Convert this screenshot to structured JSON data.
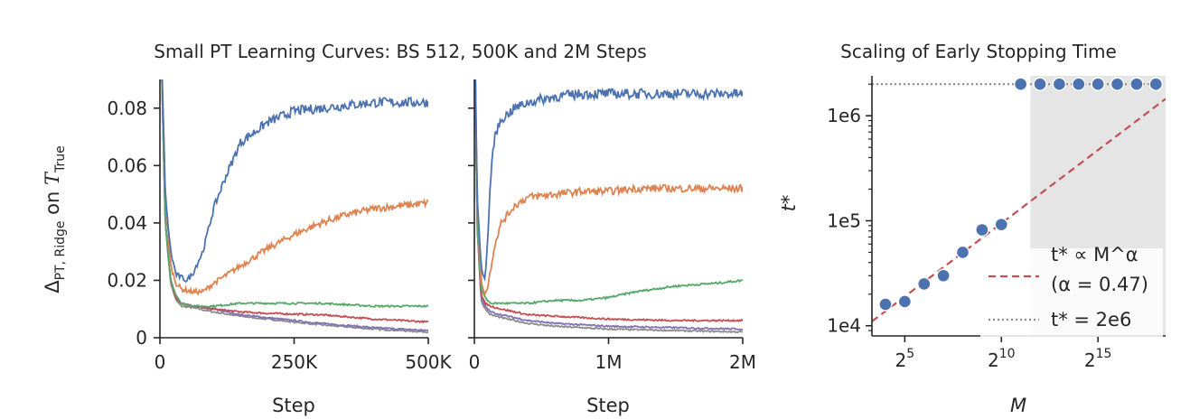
{
  "suptitle": "Small PT Learning Curves: BS 512, 500K and 2M Steps",
  "ylabel_left": "Δ_PT, Ridge on T_True",
  "ylabel_parts": {
    "delta": "Δ",
    "sub": "PT, Ridge",
    "on": " on ",
    "T": "T",
    "tsub": "True"
  },
  "colors": {
    "blue": "#4c72b0",
    "orange": "#dd8452",
    "green": "#55a868",
    "red": "#c44e52",
    "purple": "#8172b3",
    "gray": "#8c8c8c",
    "shade": "#e5e5e5"
  },
  "chart_data": [
    {
      "type": "line",
      "title": "",
      "xlabel": "Step",
      "ylabel": "Δ_PT, Ridge on T_True",
      "xlim": [
        0,
        500000
      ],
      "ylim": [
        0,
        0.09
      ],
      "xticks": [
        0,
        250000,
        500000
      ],
      "xtick_labels": [
        "0",
        "250K",
        "500K"
      ],
      "yticks": [
        0,
        0.02,
        0.04,
        0.06,
        0.08
      ],
      "ytick_labels": [
        "0",
        "0.02",
        "0.04",
        "0.06",
        "0.08"
      ],
      "series": [
        {
          "color": "blue",
          "x": [
            0,
            10000,
            20000,
            30000,
            40000,
            50000,
            60000,
            80000,
            100000,
            120000,
            150000,
            200000,
            250000,
            300000,
            350000,
            400000,
            450000,
            500000
          ],
          "values": [
            0.12,
            0.05,
            0.03,
            0.022,
            0.021,
            0.02,
            0.022,
            0.03,
            0.045,
            0.055,
            0.068,
            0.075,
            0.079,
            0.08,
            0.081,
            0.082,
            0.082,
            0.082
          ]
        },
        {
          "color": "orange",
          "x": [
            0,
            10000,
            20000,
            30000,
            40000,
            60000,
            80000,
            100000,
            150000,
            200000,
            250000,
            300000,
            350000,
            400000,
            450000,
            500000
          ],
          "values": [
            0.12,
            0.05,
            0.025,
            0.019,
            0.017,
            0.016,
            0.016,
            0.019,
            0.025,
            0.031,
            0.036,
            0.04,
            0.043,
            0.045,
            0.046,
            0.047
          ]
        },
        {
          "color": "green",
          "x": [
            0,
            10000,
            20000,
            30000,
            40000,
            60000,
            100000,
            150000,
            200000,
            300000,
            400000,
            500000
          ],
          "values": [
            0.12,
            0.04,
            0.02,
            0.015,
            0.012,
            0.011,
            0.011,
            0.012,
            0.012,
            0.012,
            0.011,
            0.011
          ]
        },
        {
          "color": "red",
          "x": [
            0,
            10000,
            20000,
            30000,
            40000,
            60000,
            100000,
            150000,
            200000,
            300000,
            400000,
            500000
          ],
          "values": [
            0.12,
            0.04,
            0.02,
            0.014,
            0.012,
            0.011,
            0.01,
            0.009,
            0.0085,
            0.008,
            0.0065,
            0.0055
          ]
        },
        {
          "color": "purple",
          "x": [
            0,
            10000,
            20000,
            30000,
            40000,
            60000,
            100000,
            150000,
            200000,
            300000,
            400000,
            500000
          ],
          "values": [
            0.12,
            0.04,
            0.02,
            0.014,
            0.012,
            0.011,
            0.01,
            0.008,
            0.007,
            0.005,
            0.0035,
            0.0025
          ]
        },
        {
          "color": "gray",
          "x": [
            0,
            10000,
            20000,
            30000,
            40000,
            60000,
            100000,
            150000,
            200000,
            300000,
            400000,
            500000
          ],
          "values": [
            0.12,
            0.04,
            0.019,
            0.013,
            0.011,
            0.0105,
            0.009,
            0.0075,
            0.0065,
            0.0045,
            0.003,
            0.002
          ]
        }
      ]
    },
    {
      "type": "line",
      "title": "",
      "xlabel": "Step",
      "ylabel": "",
      "xlim": [
        0,
        2000000
      ],
      "ylim": [
        0,
        0.09
      ],
      "xticks": [
        0,
        1000000,
        2000000
      ],
      "xtick_labels": [
        "0",
        "1M",
        "2M"
      ],
      "yticks": [
        0,
        0.02,
        0.04,
        0.06,
        0.08
      ],
      "series": [
        {
          "color": "blue",
          "x": [
            0,
            20000,
            50000,
            80000,
            100000,
            120000,
            150000,
            200000,
            300000,
            400000,
            600000,
            800000,
            1000000,
            1200000,
            1500000,
            1800000,
            2000000
          ],
          "values": [
            0.12,
            0.05,
            0.025,
            0.02,
            0.035,
            0.055,
            0.07,
            0.076,
            0.08,
            0.082,
            0.084,
            0.085,
            0.085,
            0.085,
            0.085,
            0.085,
            0.085
          ]
        },
        {
          "color": "orange",
          "x": [
            0,
            20000,
            50000,
            80000,
            100000,
            150000,
            200000,
            300000,
            400000,
            600000,
            800000,
            1000000,
            1200000,
            1500000,
            1800000,
            2000000
          ],
          "values": [
            0.12,
            0.05,
            0.02,
            0.015,
            0.018,
            0.032,
            0.04,
            0.046,
            0.049,
            0.05,
            0.051,
            0.051,
            0.052,
            0.052,
            0.052,
            0.052
          ]
        },
        {
          "color": "green",
          "x": [
            0,
            20000,
            50000,
            80000,
            120000,
            200000,
            400000,
            600000,
            800000,
            1000000,
            1200000,
            1500000,
            1800000,
            2000000
          ],
          "values": [
            0.12,
            0.04,
            0.017,
            0.014,
            0.012,
            0.012,
            0.012,
            0.013,
            0.013,
            0.014,
            0.016,
            0.018,
            0.019,
            0.02
          ]
        },
        {
          "color": "red",
          "x": [
            0,
            20000,
            50000,
            80000,
            120000,
            200000,
            400000,
            600000,
            800000,
            1000000,
            1500000,
            2000000
          ],
          "values": [
            0.12,
            0.04,
            0.015,
            0.012,
            0.011,
            0.01,
            0.008,
            0.0075,
            0.007,
            0.0065,
            0.006,
            0.006
          ]
        },
        {
          "color": "purple",
          "x": [
            0,
            20000,
            50000,
            80000,
            120000,
            200000,
            400000,
            600000,
            800000,
            1000000,
            1500000,
            2000000
          ],
          "values": [
            0.12,
            0.04,
            0.014,
            0.011,
            0.009,
            0.008,
            0.006,
            0.005,
            0.0045,
            0.004,
            0.0035,
            0.003
          ]
        },
        {
          "color": "gray",
          "x": [
            0,
            20000,
            50000,
            80000,
            120000,
            200000,
            400000,
            600000,
            800000,
            1000000,
            1500000,
            2000000
          ],
          "values": [
            0.12,
            0.04,
            0.013,
            0.01,
            0.008,
            0.007,
            0.005,
            0.004,
            0.0035,
            0.003,
            0.0025,
            0.002
          ]
        }
      ]
    },
    {
      "type": "scatter",
      "title": "Scaling of Early Stopping Time",
      "xlabel": "M",
      "ylabel": "t*",
      "x_scale": "log2",
      "y_scale": "log10",
      "xlim_log2": [
        3.3,
        18.5
      ],
      "ylim": [
        8000,
        2400000
      ],
      "xticks_log2": [
        5,
        10,
        15
      ],
      "xtick_labels": [
        {
          "base": "2",
          "exp": "5"
        },
        {
          "base": "2",
          "exp": "10"
        },
        {
          "base": "2",
          "exp": "15"
        }
      ],
      "yticks": [
        10000,
        100000,
        1000000
      ],
      "ytick_labels": [
        "1e4",
        "1e5",
        "1e6"
      ],
      "shaded_region_log2": [
        11.5,
        18.5
      ],
      "points": [
        {
          "log2_M": 4,
          "t": 16000
        },
        {
          "log2_M": 5,
          "t": 17000
        },
        {
          "log2_M": 6,
          "t": 25000
        },
        {
          "log2_M": 7,
          "t": 30000
        },
        {
          "log2_M": 8,
          "t": 50000
        },
        {
          "log2_M": 9,
          "t": 82000
        },
        {
          "log2_M": 10,
          "t": 92000
        },
        {
          "log2_M": 11,
          "t": 2000000
        },
        {
          "log2_M": 12,
          "t": 2000000
        },
        {
          "log2_M": 13,
          "t": 2000000
        },
        {
          "log2_M": 14,
          "t": 2000000
        },
        {
          "log2_M": 15,
          "t": 2000000
        },
        {
          "log2_M": 16,
          "t": 2000000
        },
        {
          "log2_M": 17,
          "t": 2000000
        },
        {
          "log2_M": 18,
          "t": 2000000
        }
      ],
      "fit_line": {
        "alpha": 0.47,
        "log2_M_range": [
          3.3,
          18.5
        ],
        "t_range": [
          11000,
          1450000
        ]
      },
      "hline": {
        "t": 2000000
      },
      "legend": {
        "placement": "lower-right",
        "entries": [
          {
            "label_line1": "t* ∝ M^α",
            "label_line2": "(α = 0.47)",
            "style": "dashed",
            "color": "red"
          },
          {
            "label": "t* = 2e6",
            "style": "dotted",
            "color": "gray"
          }
        ]
      }
    }
  ]
}
